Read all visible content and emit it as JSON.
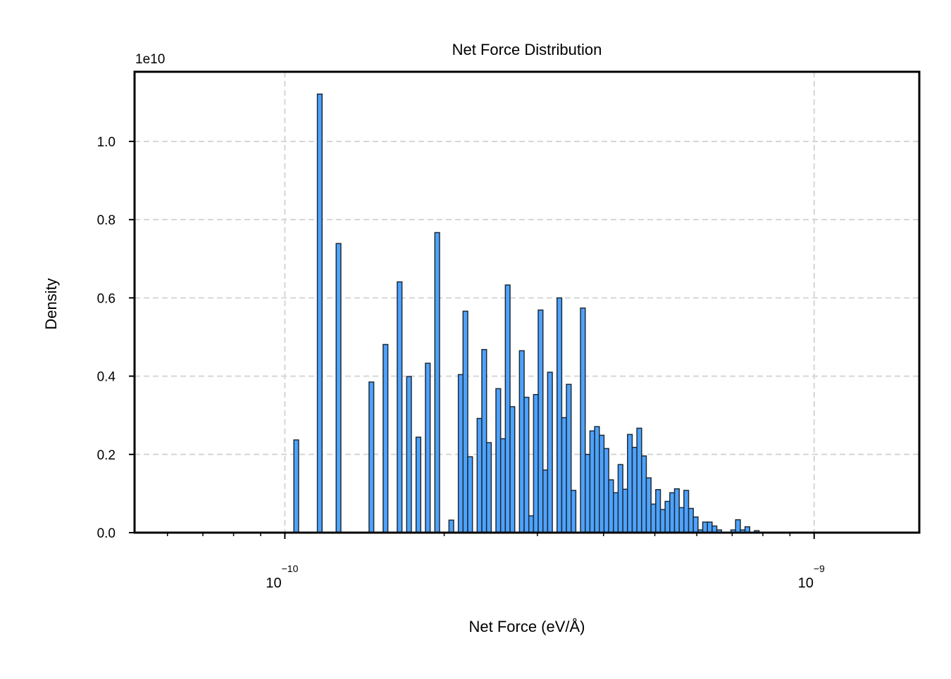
{
  "chart_data": {
    "type": "bar",
    "subtype": "histogram",
    "title": "Net Force Distribution",
    "xlabel": "Net Force (eV/Å)",
    "ylabel": "Density",
    "y_offset_label": "1e10",
    "x_scale": "log",
    "xlim": [
      5.2e-11,
      1.58e-09
    ],
    "ylim": [
      0,
      1.178
    ],
    "x_major_ticks": [
      {
        "value": 1e-10,
        "base": "10",
        "exp": "−10"
      },
      {
        "value": 1e-09,
        "base": "10",
        "exp": "−9"
      }
    ],
    "y_ticks": [
      {
        "value": 0.0,
        "label": "0.0"
      },
      {
        "value": 0.2,
        "label": "0.2"
      },
      {
        "value": 0.4,
        "label": "0.4"
      },
      {
        "value": 0.6,
        "label": "0.6"
      },
      {
        "value": 0.8,
        "label": "0.8"
      },
      {
        "value": 1.0,
        "label": "1.0"
      }
    ],
    "grid": true,
    "bin_range": [
      1.04e-10,
      7.87e-10
    ],
    "bin_spacing": "log",
    "values": [
      0.237,
      0,
      0,
      0,
      0,
      1.121,
      0,
      0,
      0,
      0.739,
      0,
      0,
      0,
      0,
      0,
      0,
      0.385,
      0,
      0,
      0.481,
      0,
      0,
      0.641,
      0,
      0.399,
      0,
      0.244,
      0,
      0.433,
      0,
      0.767,
      0,
      0,
      0.032,
      0,
      0.404,
      0.566,
      0.194,
      0,
      0.292,
      0.468,
      0.23,
      0,
      0.368,
      0.24,
      0.633,
      0.322,
      0,
      0.465,
      0.346,
      0.043,
      0.353,
      0.569,
      0.16,
      0.41,
      0,
      0.6,
      0.294,
      0.379,
      0.108,
      0,
      0.574,
      0.2,
      0.26,
      0.271,
      0.249,
      0.215,
      0.135,
      0.102,
      0.174,
      0.111,
      0.251,
      0.218,
      0.267,
      0.196,
      0.14,
      0.073,
      0.11,
      0.059,
      0.08,
      0.102,
      0.112,
      0.064,
      0.108,
      0.062,
      0.04,
      0.007,
      0.027,
      0.027,
      0.017,
      0.007,
      0,
      0,
      0.007,
      0.033,
      0.007,
      0.015,
      0,
      0.005
    ],
    "bar_color": "#4da3ff",
    "edge_color": "#1f2a36"
  }
}
